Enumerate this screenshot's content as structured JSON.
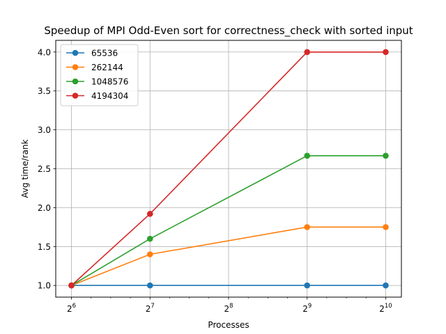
{
  "chart_data": {
    "type": "line",
    "title": "Speedup of MPI Odd-Even sort for correctness_check with sorted input",
    "xlabel": "Processes",
    "ylabel": "Avg time/rank",
    "x_scale": "log2",
    "x": [
      64,
      128,
      512,
      1024
    ],
    "xticks": [
      {
        "value": 64,
        "base": "2",
        "exp": "6"
      },
      {
        "value": 128,
        "base": "2",
        "exp": "7"
      },
      {
        "value": 256,
        "base": "2",
        "exp": "8"
      },
      {
        "value": 512,
        "base": "2",
        "exp": "9"
      },
      {
        "value": 1024,
        "base": "2",
        "exp": "10"
      }
    ],
    "yticks": [
      1.0,
      1.5,
      2.0,
      2.5,
      3.0,
      3.5,
      4.0
    ],
    "ylim": [
      0.85,
      4.15
    ],
    "grid": true,
    "legend_position": "top-left",
    "series": [
      {
        "name": "65536",
        "color": "#1f77b4",
        "values": [
          1.0,
          1.0,
          1.0,
          1.0
        ]
      },
      {
        "name": "262144",
        "color": "#ff7f0e",
        "values": [
          1.0,
          1.4,
          1.75,
          1.75
        ]
      },
      {
        "name": "1048576",
        "color": "#2ca02c",
        "values": [
          1.0,
          1.6,
          2.667,
          2.667
        ]
      },
      {
        "name": "4194304",
        "color": "#d62728",
        "values": [
          1.0,
          1.92,
          4.0,
          4.0
        ]
      }
    ]
  }
}
